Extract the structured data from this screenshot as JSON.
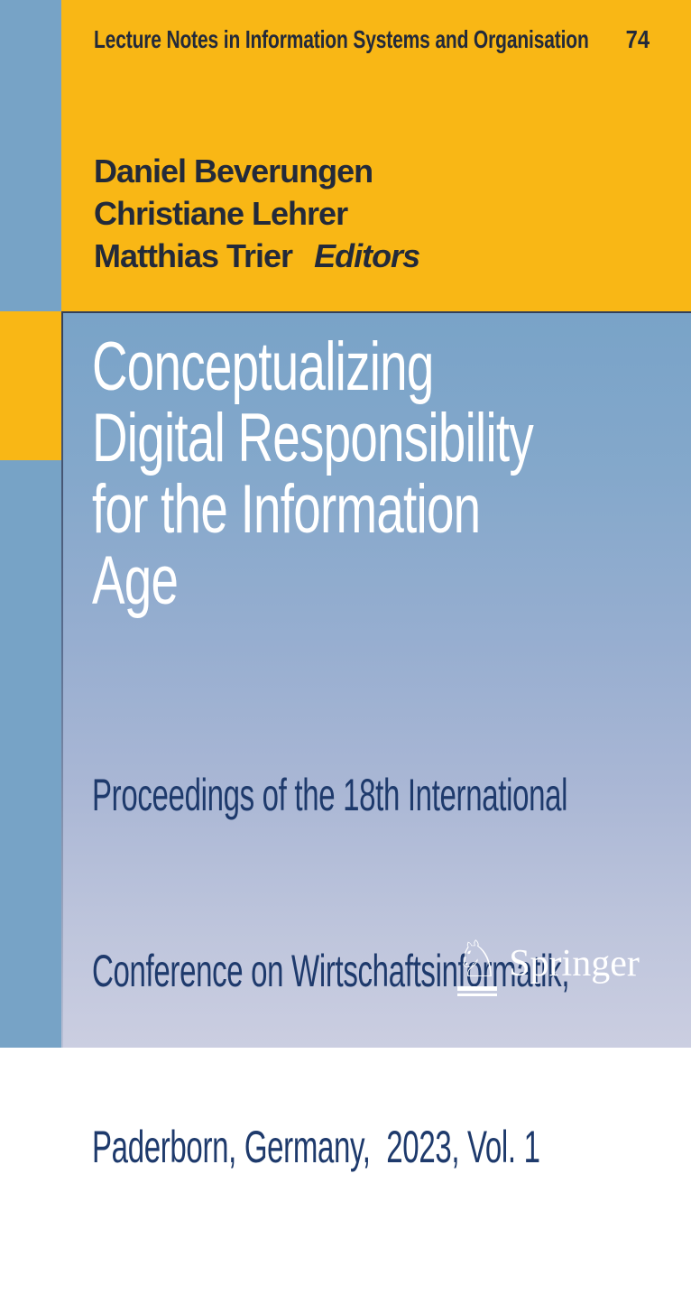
{
  "series": {
    "name": "Lecture Notes in Information Systems and Organisation",
    "volume": "74"
  },
  "editors": {
    "names": [
      "Daniel Beverungen",
      "Christiane Lehrer",
      "Matthias Trier"
    ],
    "role_label": "Editors"
  },
  "title": {
    "lines": [
      "Conceptualizing",
      "Digital Responsibility",
      "for the Information",
      "Age"
    ]
  },
  "subtitle": {
    "lines": [
      "Proceedings of the 18th International",
      "Conference on Wirtschaftsinformatik,",
      "Paderborn, Germany,  2023, Vol. 1"
    ]
  },
  "publisher": {
    "name": "Springer",
    "logo_icon": "springer-horse-icon"
  },
  "colors": {
    "yellow": "#f9b715",
    "stripe_blue": "#77a3c6",
    "panel_gradient_top": "#79a3c8",
    "panel_gradient_bottom": "#cbcee1",
    "header_text": "#232a3a",
    "subtitle_text": "#1e3a6c",
    "title_text": "#ffffff"
  }
}
